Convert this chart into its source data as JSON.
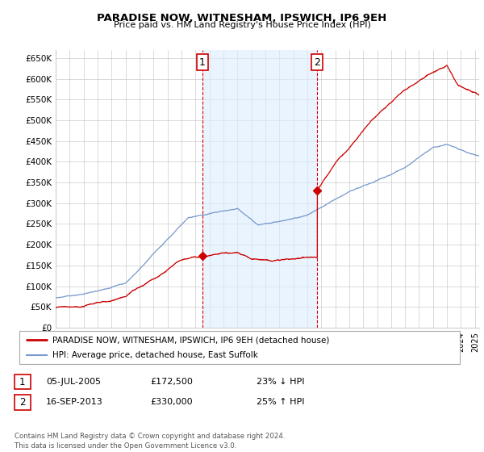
{
  "title": "PARADISE NOW, WITNESHAM, IPSWICH, IP6 9EH",
  "subtitle": "Price paid vs. HM Land Registry's House Price Index (HPI)",
  "ylabel_ticks": [
    "£0",
    "£50K",
    "£100K",
    "£150K",
    "£200K",
    "£250K",
    "£300K",
    "£350K",
    "£400K",
    "£450K",
    "£500K",
    "£550K",
    "£600K",
    "£650K"
  ],
  "ytick_values": [
    0,
    50000,
    100000,
    150000,
    200000,
    250000,
    300000,
    350000,
    400000,
    450000,
    500000,
    550000,
    600000,
    650000
  ],
  "ylim": [
    0,
    670000
  ],
  "xlim_start": 1995.0,
  "xlim_end": 2025.3,
  "legend_line1": "PARADISE NOW, WITNESHAM, IPSWICH, IP6 9EH (detached house)",
  "legend_line2": "HPI: Average price, detached house, East Suffolk",
  "line_color_property": "#cc0000",
  "line_color_hpi": "#7799cc",
  "marker1_x": 2005.5,
  "marker1_y": 172500,
  "marker2_x": 2013.72,
  "marker2_y": 330000,
  "annotation1_label": "1",
  "annotation2_label": "2",
  "note1_date": "05-JUL-2005",
  "note1_price": "£172,500",
  "note1_hpi": "23% ↓ HPI",
  "note2_date": "16-SEP-2013",
  "note2_price": "£330,000",
  "note2_hpi": "25% ↑ HPI",
  "footer": "Contains HM Land Registry data © Crown copyright and database right 2024.\nThis data is licensed under the Open Government Licence v3.0.",
  "background_color": "#ffffff",
  "grid_color": "#cccccc",
  "vline_color": "#cc0000",
  "shade_color": "#ddeeff",
  "vline1_x": 2005.5,
  "vline2_x": 2013.72
}
